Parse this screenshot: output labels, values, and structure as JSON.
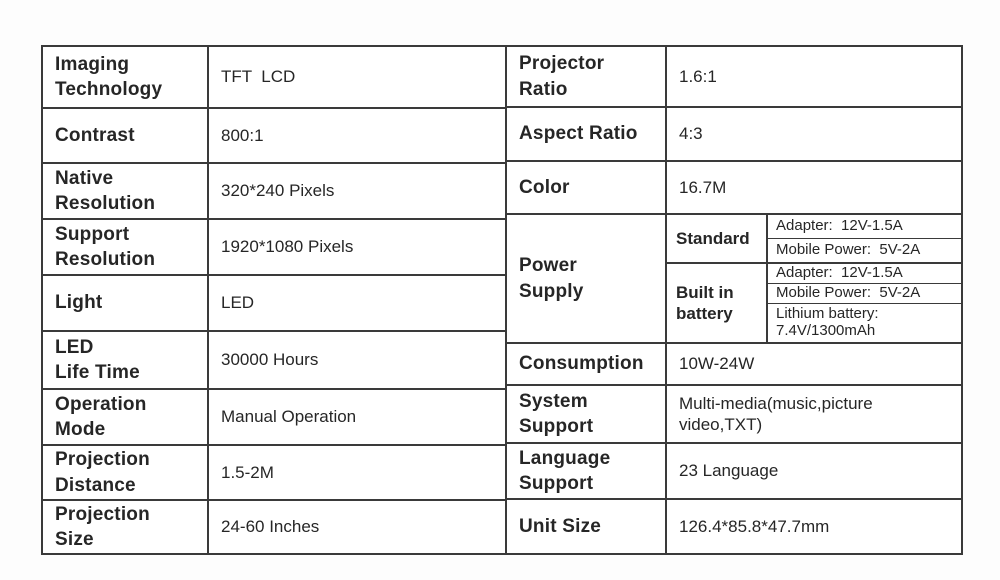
{
  "colors": {
    "border": "#3a3a3a",
    "text": "#262626",
    "background": "#ffffff"
  },
  "table": {
    "left_rows": [
      {
        "label": "Imaging\nTechnology",
        "value": "TFT  LCD"
      },
      {
        "label": "Contrast",
        "value": "800:1"
      },
      {
        "label": "Native\nResolution",
        "value": "320*240 Pixels"
      },
      {
        "label": "Support\nResolution",
        "value": "1920*1080 Pixels"
      },
      {
        "label": "Light",
        "value": "LED"
      },
      {
        "label": "LED\nLife Time",
        "value": "30000 Hours"
      },
      {
        "label": "Operation\nMode",
        "value": "Manual Operation"
      },
      {
        "label": "Projection\nDistance",
        "value": "1.5-2M"
      },
      {
        "label": "Projection\nSize",
        "value": "24-60 Inches"
      }
    ],
    "right_rows_top": [
      {
        "label": "Projector\nRatio",
        "value": "1.6:1"
      },
      {
        "label": "Aspect Ratio",
        "value": "4:3"
      },
      {
        "label": "Color",
        "value": "16.7M"
      }
    ],
    "power_supply": {
      "label": "Power\nSupply",
      "standard": {
        "label": "Standard",
        "adapter": "Adapter:  12V-1.5A",
        "mobile_power": "Mobile Power:  5V-2A"
      },
      "built_in_battery": {
        "label": "Built in\nbattery",
        "adapter": "Adapter:  12V-1.5A",
        "mobile_power": "Mobile Power:  5V-2A",
        "lithium_battery": "Lithium battery:\n7.4V/1300mAh"
      }
    },
    "right_rows_bottom": [
      {
        "label": "Consumption",
        "value": "10W-24W"
      },
      {
        "label": "System\nSupport",
        "value": "Multi-media(music,picture\nvideo,TXT)"
      },
      {
        "label": "Language\nSupport",
        "value": "23 Language"
      },
      {
        "label": "Unit Size",
        "value": "126.4*85.8*47.7mm"
      }
    ]
  }
}
